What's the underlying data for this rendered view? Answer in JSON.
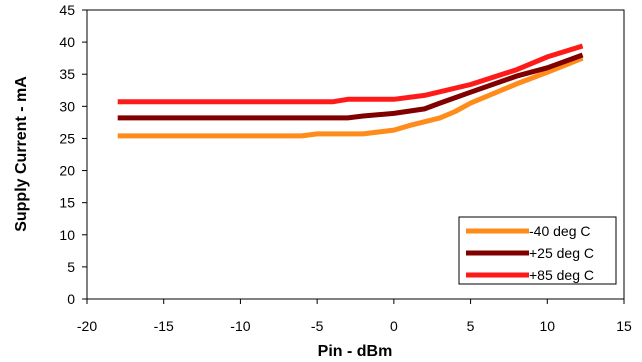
{
  "chart_data": {
    "type": "line",
    "xlabel": "Pin - dBm",
    "ylabel": "Supply Current - mA",
    "xlim": [
      -20,
      15
    ],
    "ylim": [
      0,
      45
    ],
    "xticks": [
      -20,
      -15,
      -10,
      -5,
      0,
      5,
      10,
      15
    ],
    "yticks": [
      0,
      5,
      10,
      15,
      20,
      25,
      30,
      35,
      40,
      45
    ],
    "grid": false,
    "legend_position": "bottom-right",
    "series": [
      {
        "name": "-40 deg C",
        "color": "#FF8C1A",
        "points": [
          [
            -18,
            25.4
          ],
          [
            -10,
            25.4
          ],
          [
            -6,
            25.4
          ],
          [
            -5,
            25.7
          ],
          [
            -2,
            25.7
          ],
          [
            0,
            26.3
          ],
          [
            1,
            27.0
          ],
          [
            3,
            28.2
          ],
          [
            4,
            29.2
          ],
          [
            5,
            30.5
          ],
          [
            8,
            33.5
          ],
          [
            10,
            35.3
          ],
          [
            12.3,
            37.5
          ]
        ]
      },
      {
        "name": "+25 deg C",
        "color": "#800000",
        "points": [
          [
            -18,
            28.2
          ],
          [
            -10,
            28.2
          ],
          [
            -5,
            28.2
          ],
          [
            -3,
            28.2
          ],
          [
            -2,
            28.5
          ],
          [
            0,
            28.9
          ],
          [
            2,
            29.6
          ],
          [
            3,
            30.5
          ],
          [
            5,
            32.2
          ],
          [
            8,
            34.7
          ],
          [
            10,
            36.0
          ],
          [
            12.3,
            38.0
          ]
        ]
      },
      {
        "name": "+85 deg C",
        "color": "#FF1A1A",
        "points": [
          [
            -18,
            30.7
          ],
          [
            -10,
            30.7
          ],
          [
            -4,
            30.7
          ],
          [
            -3,
            31.1
          ],
          [
            0,
            31.1
          ],
          [
            2,
            31.7
          ],
          [
            5,
            33.4
          ],
          [
            8,
            35.7
          ],
          [
            10,
            37.7
          ],
          [
            12.3,
            39.4
          ]
        ]
      }
    ]
  }
}
